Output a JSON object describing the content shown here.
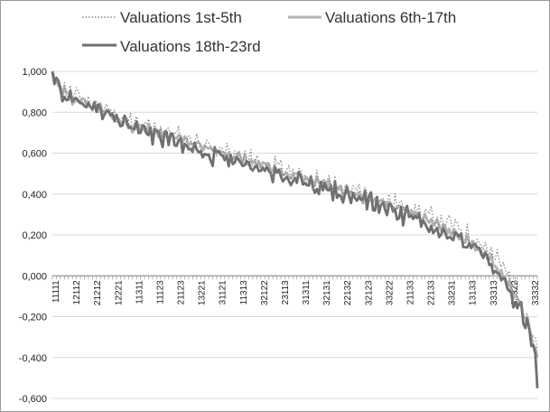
{
  "chart_data": {
    "type": "line",
    "title": "",
    "xlabel": "",
    "ylabel": "",
    "ylim": [
      -0.6,
      1.0
    ],
    "y_ticks": [
      1.0,
      0.8,
      0.6,
      0.4,
      0.2,
      0.0,
      -0.2,
      -0.4,
      -0.6
    ],
    "y_tick_labels": [
      "1,000",
      "0,800",
      "0,600",
      "0,400",
      "0,200",
      "0,000",
      "-0,200",
      "-0,400",
      "-0,600"
    ],
    "x_tick_labels": [
      "11111",
      "12112",
      "21212",
      "12221",
      "11311",
      "11123",
      "21123",
      "13221",
      "31121",
      "11313",
      "32122",
      "23113",
      "31311",
      "32131",
      "22132",
      "32123",
      "33222",
      "21133",
      "22133",
      "33231",
      "13133",
      "33313",
      "33322",
      "33332"
    ],
    "point_count": 243,
    "grid": "horizontal",
    "legend_position": "top",
    "series": [
      {
        "name": "Valuations 1st-5th",
        "style": "dotted",
        "color": "#8c8c8c",
        "key_points": [
          [
            0,
            1.0
          ],
          [
            3,
            0.92
          ],
          [
            10,
            0.88
          ],
          [
            25,
            0.82
          ],
          [
            40,
            0.74
          ],
          [
            60,
            0.69
          ],
          [
            80,
            0.62
          ],
          [
            100,
            0.56
          ],
          [
            120,
            0.5
          ],
          [
            140,
            0.44
          ],
          [
            160,
            0.38
          ],
          [
            180,
            0.32
          ],
          [
            200,
            0.24
          ],
          [
            215,
            0.15
          ],
          [
            225,
            0.04
          ],
          [
            235,
            -0.14
          ],
          [
            240,
            -0.3
          ],
          [
            242,
            -0.36
          ]
        ]
      },
      {
        "name": "Valuations 6th-17th",
        "style": "solid",
        "color": "#b3b3b3",
        "key_points": [
          [
            0,
            1.0
          ],
          [
            3,
            0.91
          ],
          [
            10,
            0.87
          ],
          [
            25,
            0.81
          ],
          [
            40,
            0.73
          ],
          [
            60,
            0.68
          ],
          [
            80,
            0.61
          ],
          [
            100,
            0.55
          ],
          [
            120,
            0.49
          ],
          [
            140,
            0.43
          ],
          [
            160,
            0.37
          ],
          [
            180,
            0.3
          ],
          [
            200,
            0.21
          ],
          [
            215,
            0.12
          ],
          [
            225,
            0.0
          ],
          [
            235,
            -0.18
          ],
          [
            240,
            -0.33
          ],
          [
            242,
            -0.4
          ]
        ]
      },
      {
        "name": "Valuations 18th-23rd",
        "style": "solid",
        "color": "#6f6f6f",
        "key_points": [
          [
            0,
            1.0
          ],
          [
            3,
            0.9
          ],
          [
            10,
            0.86
          ],
          [
            25,
            0.8
          ],
          [
            40,
            0.72
          ],
          [
            60,
            0.66
          ],
          [
            80,
            0.59
          ],
          [
            100,
            0.53
          ],
          [
            120,
            0.47
          ],
          [
            140,
            0.41
          ],
          [
            160,
            0.35
          ],
          [
            180,
            0.28
          ],
          [
            200,
            0.19
          ],
          [
            215,
            0.1
          ],
          [
            225,
            -0.03
          ],
          [
            235,
            -0.2
          ],
          [
            240,
            -0.35
          ],
          [
            241,
            -0.4
          ],
          [
            242,
            -0.55
          ]
        ]
      }
    ]
  }
}
